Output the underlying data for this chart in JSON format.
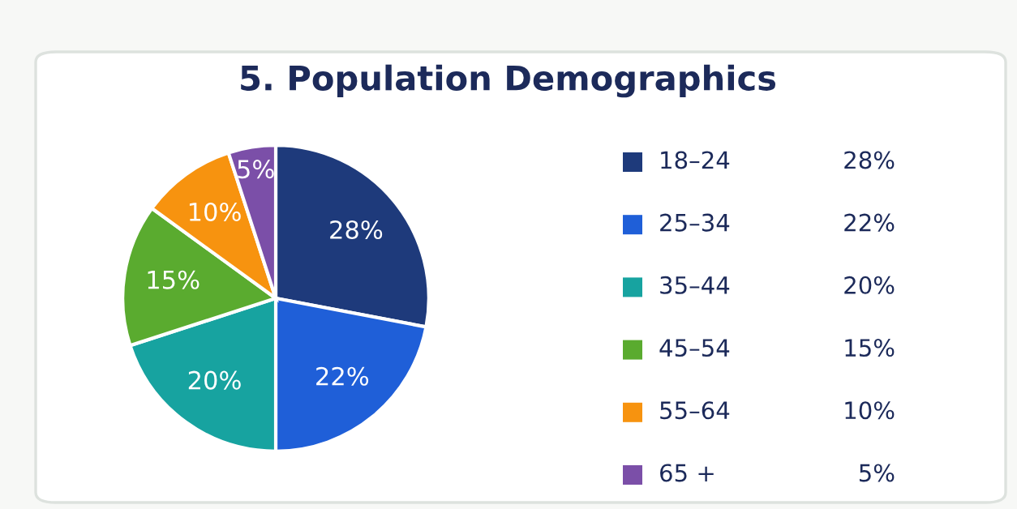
{
  "chart_data": {
    "type": "pie",
    "title": "5. Population Demographics",
    "categories": [
      "18–24",
      "25–34",
      "35–44",
      "45–54",
      "55–64",
      "65 +"
    ],
    "values": [
      28,
      22,
      20,
      15,
      10,
      5
    ],
    "colors": [
      "#1e3a7b",
      "#1f5fd8",
      "#17a3a0",
      "#5aab2f",
      "#f7930f",
      "#7b4fa8"
    ],
    "value_labels": [
      "28%",
      "22%",
      "20%",
      "15%",
      "10%",
      "5%"
    ],
    "legend": "right"
  }
}
